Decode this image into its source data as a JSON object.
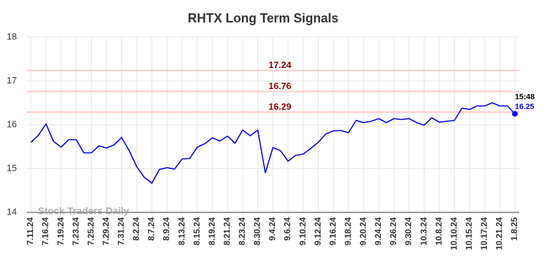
{
  "chart_data": {
    "type": "line",
    "title": "RHTX Long Term Signals",
    "categories": [
      "7.11.24",
      null,
      "7.16.24",
      null,
      "7.19.24",
      null,
      "7.23.24",
      null,
      "7.25.24",
      null,
      "7.29.24",
      null,
      "7.31.24",
      null,
      "8.2.24",
      null,
      "8.7.24",
      null,
      "8.9.24",
      null,
      "8.13.24",
      null,
      "8.15.24",
      null,
      "8.19.24",
      null,
      "8.21.24",
      null,
      "8.23.24",
      null,
      "8.30.24",
      null,
      "9.4.24",
      null,
      "9.6.24",
      null,
      "9.10.24",
      null,
      "9.12.24",
      null,
      "9.16.24",
      null,
      "9.18.24",
      null,
      "9.20.24",
      null,
      "9.24.24",
      null,
      "9.26.24",
      null,
      "9.30.24",
      null,
      "10.3.24",
      null,
      "10.8.24",
      null,
      "10.10.24",
      null,
      "10.15.24",
      null,
      "10.17.24",
      null,
      "10.21.24",
      null,
      "1.8.25"
    ],
    "values": [
      15.6,
      15.76,
      16.02,
      15.62,
      15.49,
      15.66,
      15.66,
      15.36,
      15.36,
      15.52,
      15.47,
      15.54,
      15.71,
      15.41,
      15.04,
      14.8,
      14.67,
      14.98,
      15.02,
      14.99,
      15.22,
      15.23,
      15.49,
      15.57,
      15.7,
      15.63,
      15.74,
      15.58,
      15.88,
      15.75,
      15.88,
      14.9,
      15.48,
      15.41,
      15.17,
      15.3,
      15.33,
      15.46,
      15.6,
      15.79,
      15.86,
      15.87,
      15.82,
      16.1,
      16.05,
      16.08,
      16.14,
      16.05,
      16.14,
      16.12,
      16.14,
      16.05,
      15.99,
      16.16,
      16.06,
      16.08,
      16.1,
      16.38,
      16.35,
      16.43,
      16.43,
      16.5,
      16.43,
      16.43,
      16.25
    ],
    "color": "#0000ee",
    "ylim": [
      14,
      18
    ],
    "yticks": [
      14,
      15,
      16,
      17,
      18
    ],
    "grid": true,
    "reference_lines": [
      17.24,
      16.76,
      16.29
    ],
    "reference_line_color": "#ffc8c8",
    "reference_label_color": "#8b0000",
    "last_time": "15:48",
    "watermark": "Stock Traders Daily"
  }
}
